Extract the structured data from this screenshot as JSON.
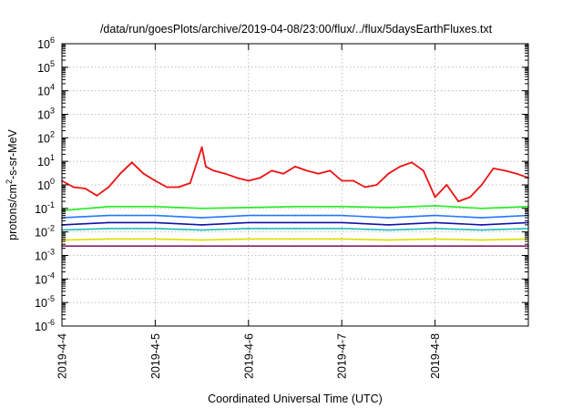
{
  "chart_data": {
    "type": "line",
    "title": "/data/run/goesPlots/archive/2019-04-08/23:00/flux/../flux/5daysEarthFluxes.txt",
    "xlabel": "Coordinated Universal Time (UTC)",
    "ylabel": "protons/cm2-s-sr-MeV",
    "ylabel_parts": {
      "prefix": "protons/cm",
      "sup": "2",
      "suffix": "-s-sr-MeV"
    },
    "y_scale": "log",
    "ylim": [
      1e-06,
      1000000.0
    ],
    "xlim": [
      "2019-04-04",
      "2019-04-09"
    ],
    "grid": true,
    "x_ticks": [
      "2019-4-4",
      "2019-4-5",
      "2019-4-6",
      "2019-4-7",
      "2019-4-8"
    ],
    "y_ticks": [
      {
        "base": "10",
        "exp": "-6"
      },
      {
        "base": "10",
        "exp": "-5"
      },
      {
        "base": "10",
        "exp": "-4"
      },
      {
        "base": "10",
        "exp": "-3"
      },
      {
        "base": "10",
        "exp": "-2"
      },
      {
        "base": "10",
        "exp": "-1"
      },
      {
        "base": "10",
        "exp": "0"
      },
      {
        "base": "10",
        "exp": "1"
      },
      {
        "base": "10",
        "exp": "2"
      },
      {
        "base": "10",
        "exp": "3"
      },
      {
        "base": "10",
        "exp": "4"
      },
      {
        "base": "10",
        "exp": "5"
      },
      {
        "base": "10",
        "exp": "6"
      }
    ],
    "series": [
      {
        "color": "#ee1111",
        "x": [
          "2019-04-04T00:00",
          "2019-04-04T03:00",
          "2019-04-04T06:00",
          "2019-04-04T09:00",
          "2019-04-04T12:00",
          "2019-04-04T15:00",
          "2019-04-04T18:00",
          "2019-04-04T21:00",
          "2019-04-05T00:00",
          "2019-04-05T03:00",
          "2019-04-05T06:00",
          "2019-04-05T09:00",
          "2019-04-05T12:00",
          "2019-04-05T13:00",
          "2019-04-05T15:00",
          "2019-04-05T18:00",
          "2019-04-05T21:00",
          "2019-04-06T00:00",
          "2019-04-06T03:00",
          "2019-04-06T06:00",
          "2019-04-06T09:00",
          "2019-04-06T12:00",
          "2019-04-06T15:00",
          "2019-04-06T18:00",
          "2019-04-06T21:00",
          "2019-04-07T00:00",
          "2019-04-07T03:00",
          "2019-04-07T06:00",
          "2019-04-07T09:00",
          "2019-04-07T12:00",
          "2019-04-07T15:00",
          "2019-04-07T18:00",
          "2019-04-07T21:00",
          "2019-04-08T00:00",
          "2019-04-08T03:00",
          "2019-04-08T06:00",
          "2019-04-08T09:00",
          "2019-04-08T12:00",
          "2019-04-08T15:00",
          "2019-04-08T18:00",
          "2019-04-08T21:00",
          "2019-04-09T00:00"
        ],
        "y": [
          1.5,
          0.8,
          0.7,
          0.35,
          0.8,
          3,
          9,
          3,
          1.5,
          0.8,
          0.8,
          1.2,
          40,
          6,
          4,
          3,
          2,
          1.5,
          2,
          4,
          3,
          6,
          4,
          3,
          4,
          1.5,
          1.5,
          0.8,
          1,
          3,
          6,
          9,
          4,
          0.3,
          1,
          0.2,
          0.3,
          1,
          5,
          4,
          3,
          2
        ]
      },
      {
        "color": "#22ee22",
        "x": [
          "2019-04-04T00:00",
          "2019-04-04T12:00",
          "2019-04-05T00:00",
          "2019-04-05T12:00",
          "2019-04-06T00:00",
          "2019-04-06T12:00",
          "2019-04-07T00:00",
          "2019-04-07T12:00",
          "2019-04-08T00:00",
          "2019-04-08T12:00",
          "2019-04-09T00:00"
        ],
        "y": [
          0.08,
          0.12,
          0.12,
          0.1,
          0.11,
          0.12,
          0.12,
          0.11,
          0.13,
          0.1,
          0.12
        ]
      },
      {
        "color": "#2277ff",
        "x": [
          "2019-04-04T00:00",
          "2019-04-04T12:00",
          "2019-04-05T00:00",
          "2019-04-05T12:00",
          "2019-04-06T00:00",
          "2019-04-06T12:00",
          "2019-04-07T00:00",
          "2019-04-07T12:00",
          "2019-04-08T00:00",
          "2019-04-08T12:00",
          "2019-04-09T00:00"
        ],
        "y": [
          0.04,
          0.05,
          0.05,
          0.04,
          0.05,
          0.05,
          0.05,
          0.04,
          0.05,
          0.04,
          0.05
        ]
      },
      {
        "color": "#1111aa",
        "x": [
          "2019-04-04T00:00",
          "2019-04-04T12:00",
          "2019-04-05T00:00",
          "2019-04-05T12:00",
          "2019-04-06T00:00",
          "2019-04-06T12:00",
          "2019-04-07T00:00",
          "2019-04-07T12:00",
          "2019-04-08T00:00",
          "2019-04-08T12:00",
          "2019-04-09T00:00"
        ],
        "y": [
          0.02,
          0.025,
          0.025,
          0.02,
          0.025,
          0.025,
          0.025,
          0.02,
          0.025,
          0.02,
          0.025
        ]
      },
      {
        "color": "#22bbbb",
        "x": [
          "2019-04-04T00:00",
          "2019-04-04T12:00",
          "2019-04-05T00:00",
          "2019-04-05T12:00",
          "2019-04-06T00:00",
          "2019-04-06T12:00",
          "2019-04-07T00:00",
          "2019-04-07T12:00",
          "2019-04-08T00:00",
          "2019-04-08T12:00",
          "2019-04-09T00:00"
        ],
        "y": [
          0.012,
          0.014,
          0.014,
          0.012,
          0.014,
          0.014,
          0.014,
          0.012,
          0.014,
          0.012,
          0.014
        ]
      },
      {
        "color": "#dddd00",
        "x": [
          "2019-04-04T00:00",
          "2019-04-04T12:00",
          "2019-04-05T00:00",
          "2019-04-05T12:00",
          "2019-04-06T00:00",
          "2019-04-06T12:00",
          "2019-04-07T00:00",
          "2019-04-07T12:00",
          "2019-04-08T00:00",
          "2019-04-08T12:00",
          "2019-04-09T00:00"
        ],
        "y": [
          0.0045,
          0.005,
          0.005,
          0.0045,
          0.005,
          0.005,
          0.005,
          0.0045,
          0.005,
          0.0045,
          0.005
        ]
      },
      {
        "color": "#882266",
        "x": [
          "2019-04-04T00:00",
          "2019-04-04T12:00",
          "2019-04-05T00:00",
          "2019-04-05T12:00",
          "2019-04-06T00:00",
          "2019-04-06T12:00",
          "2019-04-07T00:00",
          "2019-04-07T12:00",
          "2019-04-08T00:00",
          "2019-04-08T12:00",
          "2019-04-09T00:00"
        ],
        "y": [
          0.0025,
          0.0025,
          0.0025,
          0.0025,
          0.0025,
          0.0025,
          0.0025,
          0.0025,
          0.0025,
          0.0025,
          0.0025
        ]
      }
    ]
  }
}
